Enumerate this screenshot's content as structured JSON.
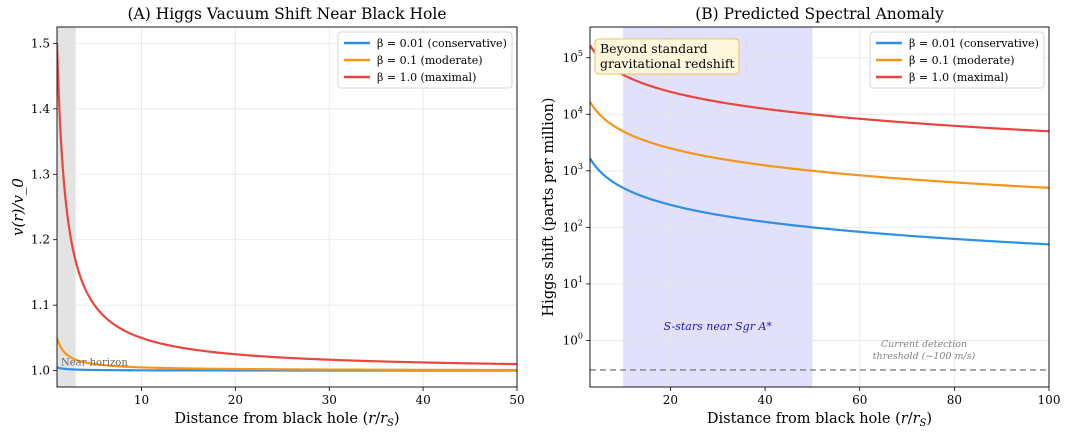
{
  "chart_data": [
    {
      "type": "line",
      "title": "(A) Higgs Vacuum Shift Near Black Hole",
      "xlabel": "Distance from black hole (r/r_S)",
      "xlabel_parts": {
        "main": "Distance from black hole (",
        "var": "r",
        "slash": "/",
        "var2": "r",
        "sub": "S",
        "close": ")"
      },
      "ylabel": "v(r)/v_0",
      "xlim": [
        1,
        50
      ],
      "ylim": [
        0.975,
        1.525
      ],
      "xticks": [
        10,
        20,
        30,
        40,
        50
      ],
      "yticks": [
        1.0,
        1.1,
        1.2,
        1.3,
        1.4,
        1.5
      ],
      "ytick_labels": [
        "1.0",
        "1.1",
        "1.2",
        "1.3",
        "1.4",
        "1.5"
      ],
      "grid": true,
      "legend_position": "top-right",
      "series": [
        {
          "name": "β = 0.01 (conservative)",
          "beta": 0.01,
          "color": "#2f8fe6",
          "x": [
            1,
            1.5,
            2,
            3,
            5,
            10,
            20,
            30,
            50
          ],
          "y": [
            1.005,
            1.0033,
            1.0025,
            1.0017,
            1.001,
            1.0005,
            1.0003,
            1.0002,
            1.0001
          ]
        },
        {
          "name": "β = 0.1 (moderate)",
          "beta": 0.1,
          "color": "#f5961a",
          "x": [
            1,
            1.5,
            2,
            3,
            5,
            10,
            20,
            30,
            50
          ],
          "y": [
            1.05,
            1.033,
            1.025,
            1.017,
            1.01,
            1.005,
            1.0025,
            1.0017,
            1.001
          ]
        },
        {
          "name": "β = 1.0 (maximal)",
          "beta": 1.0,
          "color": "#e8463f",
          "x": [
            1,
            1.5,
            2,
            3,
            5,
            10,
            20,
            30,
            50
          ],
          "y": [
            1.5,
            1.333,
            1.25,
            1.167,
            1.1,
            1.05,
            1.025,
            1.017,
            1.01
          ]
        }
      ],
      "shaded_region": {
        "x": [
          1,
          3
        ],
        "label": "Near horizon",
        "color": "#d9d9d9"
      }
    },
    {
      "type": "line",
      "title": "(B) Predicted Spectral Anomaly",
      "xlabel": "Distance from black hole (r/r_S)",
      "xlabel_parts": {
        "main": "Distance from black hole (",
        "var": "r",
        "slash": "/",
        "var2": "r",
        "sub": "S",
        "close": ")"
      },
      "ylabel": "Higgs shift (parts per million)",
      "xlim": [
        3,
        100
      ],
      "ylim": [
        0.15,
        350000
      ],
      "yscale": "log",
      "xticks": [
        20,
        40,
        60,
        80,
        100
      ],
      "yticks": [
        1,
        10,
        100,
        1000,
        10000,
        100000
      ],
      "ytick_labels": [
        {
          "base": "10",
          "exp": "0"
        },
        {
          "base": "10",
          "exp": "1"
        },
        {
          "base": "10",
          "exp": "2"
        },
        {
          "base": "10",
          "exp": "3"
        },
        {
          "base": "10",
          "exp": "4"
        },
        {
          "base": "10",
          "exp": "5"
        }
      ],
      "grid": true,
      "legend_position": "top-right",
      "series": [
        {
          "name": "β = 0.01 (conservative)",
          "beta": 0.01,
          "color": "#2f8fe6",
          "x": [
            3,
            5,
            10,
            20,
            30,
            50,
            75,
            100
          ],
          "y": [
            1667,
            1000,
            500,
            250,
            167,
            100,
            67,
            50
          ]
        },
        {
          "name": "β = 0.1 (moderate)",
          "beta": 0.1,
          "color": "#f5961a",
          "x": [
            3,
            5,
            10,
            20,
            30,
            50,
            75,
            100
          ],
          "y": [
            16667,
            10000,
            5000,
            2500,
            1667,
            1000,
            667,
            500
          ]
        },
        {
          "name": "β = 1.0 (maximal)",
          "beta": 1.0,
          "color": "#e8463f",
          "x": [
            3,
            5,
            10,
            20,
            30,
            50,
            75,
            100
          ],
          "y": [
            166667,
            100000,
            50000,
            25000,
            16667,
            10000,
            6667,
            5000
          ]
        }
      ],
      "shaded_region": {
        "x": [
          10,
          50
        ],
        "label": "S-stars near Sgr A*",
        "color": "#c9c9f7"
      },
      "threshold": {
        "y": 0.3,
        "label_line1": "Current detection",
        "label_line2": "threshold (~100 m/s)"
      },
      "annotation": {
        "line1": "Beyond standard",
        "line2": "gravitational redshift"
      }
    }
  ]
}
